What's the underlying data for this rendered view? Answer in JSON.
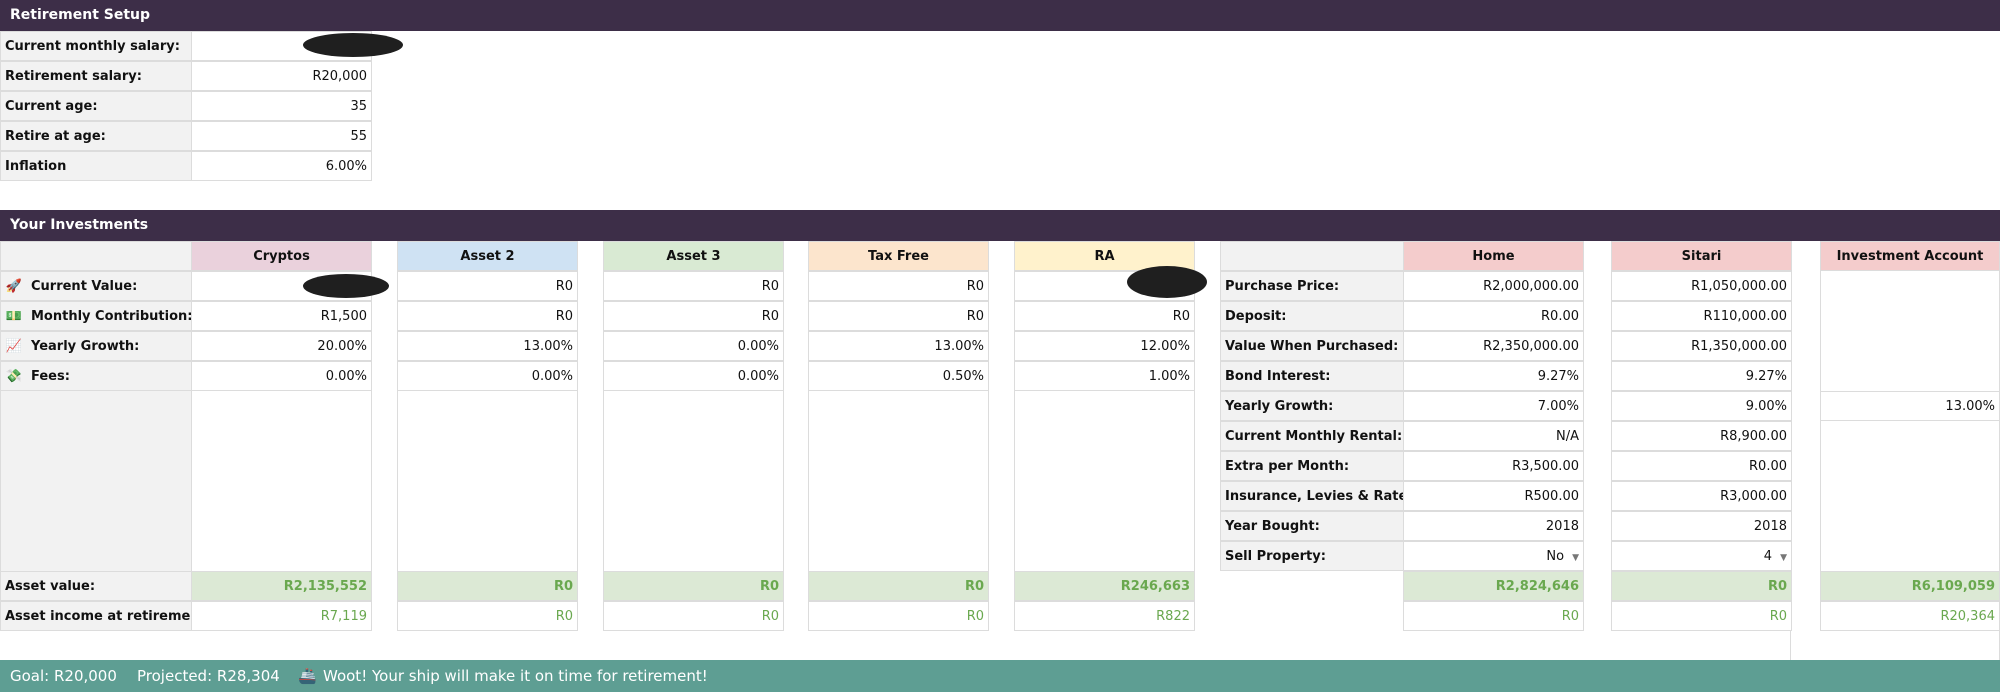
{
  "setup": {
    "title": "Retirement Setup",
    "rows": [
      {
        "label": "Current monthly salary:",
        "value": ""
      },
      {
        "label": "Retirement salary:",
        "value": "R20,000"
      },
      {
        "label": "Current age:",
        "value": "35"
      },
      {
        "label": "Retire at age:",
        "value": "55"
      },
      {
        "label": "Inflation",
        "value": "6.00%"
      }
    ]
  },
  "investments": {
    "title": "Your Investments",
    "row_labels": [
      "Current Value:",
      "Monthly Contribution:",
      "Yearly Growth:",
      "Fees:"
    ],
    "row_icons": [
      "rocket-icon",
      "money-icon",
      "chart-up-icon",
      "money-wings-icon"
    ],
    "asset_value_label": "Asset value:",
    "asset_income_label": "Asset income at retirement:",
    "assets": [
      {
        "name": "Cryptos",
        "color": "#ead1dc",
        "current": "",
        "monthly": "R1,500",
        "growth": "20.00%",
        "fees": "0.00%",
        "asset_value": "R2,135,552",
        "income": "R7,119"
      },
      {
        "name": "Asset 2",
        "color": "#cfe2f3",
        "current": "R0",
        "monthly": "R0",
        "growth": "13.00%",
        "fees": "0.00%",
        "asset_value": "R0",
        "income": "R0"
      },
      {
        "name": "Asset 3",
        "color": "#d9ead3",
        "current": "R0",
        "monthly": "R0",
        "growth": "0.00%",
        "fees": "0.00%",
        "asset_value": "R0",
        "income": "R0"
      },
      {
        "name": "Tax Free",
        "color": "#fce5cd",
        "current": "R0",
        "monthly": "R0",
        "growth": "13.00%",
        "fees": "0.50%",
        "asset_value": "R0",
        "income": "R0"
      },
      {
        "name": "RA",
        "color": "#fff2cc",
        "current": "",
        "monthly": "R0",
        "growth": "12.00%",
        "fees": "1.00%",
        "asset_value": "R246,663",
        "income": "R822"
      }
    ]
  },
  "property": {
    "labels": [
      "Purchase Price:",
      "Deposit:",
      "Value When Purchased:",
      "Bond Interest:",
      "Yearly Growth:",
      "Current Monthly Rental:",
      "Extra per Month:",
      "Insurance, Levies & Rates",
      "Year Bought:",
      "Sell Property:"
    ],
    "color": "#f4cccc",
    "columns": [
      {
        "name": "Home",
        "values": [
          "R2,000,000.00",
          "R0.00",
          "R2,350,000.00",
          "9.27%",
          "7.00%",
          "N/A",
          "R3,500.00",
          "R500.00",
          "2018",
          "No"
        ],
        "asset_value": "R2,824,646",
        "income": "R0"
      },
      {
        "name": "Sitari",
        "values": [
          "R1,050,000.00",
          "R110,000.00",
          "R1,350,000.00",
          "9.27%",
          "9.00%",
          "R8,900.00",
          "R0.00",
          "R3,000.00",
          "2018",
          "4"
        ],
        "asset_value": "R0",
        "income": "R0"
      }
    ]
  },
  "investment_account": {
    "name": "Investment Account",
    "color": "#f4cccc",
    "growth": "13.00%",
    "asset_value": "R6,109,059",
    "income": "R20,364"
  },
  "footer": {
    "goal": "Goal: R20,000",
    "projected": "Projected: R28,304",
    "message": "Woot! Your ship will make it on time for retirement!"
  }
}
